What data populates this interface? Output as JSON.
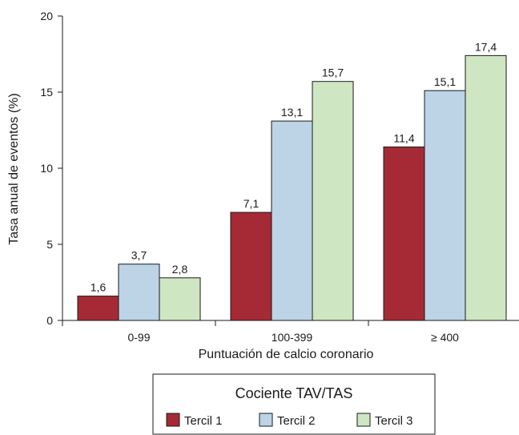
{
  "chart_data": {
    "type": "bar",
    "title": "",
    "xlabel": "Puntuación de calcio coronario",
    "ylabel": "Tasa anual de eventos (%)",
    "ylim": [
      0,
      20
    ],
    "yticks": [
      0,
      5,
      10,
      15,
      20
    ],
    "ytick_labels": [
      "0",
      "5",
      "10",
      "15",
      "20"
    ],
    "categories": [
      "0-99",
      "100-399",
      "≥ 400"
    ],
    "series": [
      {
        "name": "Tercil 1",
        "color": "#a52a35",
        "values": [
          1.6,
          7.1,
          11.4
        ],
        "labels": [
          "1,6",
          "7,1",
          "11,4"
        ]
      },
      {
        "name": "Tercil 2",
        "color": "#bdd4e7",
        "values": [
          3.7,
          13.1,
          15.1
        ],
        "labels": [
          "3,7",
          "13,1",
          "15,1"
        ]
      },
      {
        "name": "Tercil 3",
        "color": "#cfe6c2",
        "values": [
          2.8,
          15.7,
          17.4
        ],
        "labels": [
          "2,8",
          "15,7",
          "17,4"
        ]
      }
    ],
    "legend": {
      "title": "Cociente TAV/TAS",
      "placement": "bottom-center"
    },
    "grid": false
  }
}
